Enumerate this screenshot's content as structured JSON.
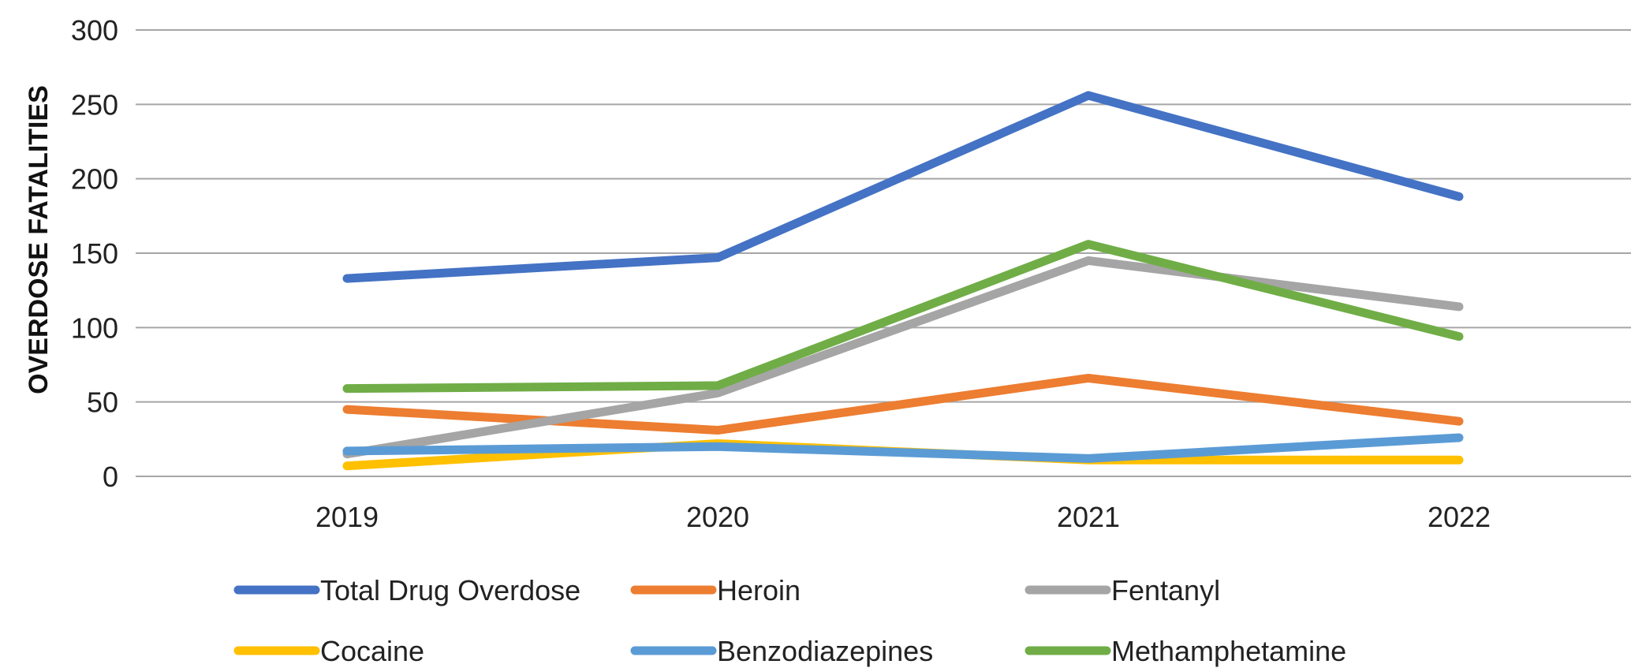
{
  "chart_data": {
    "type": "line",
    "title": "",
    "xlabel": "",
    "ylabel": "OVERDOSE FATALITIES",
    "categories": [
      "2019",
      "2020",
      "2021",
      "2022"
    ],
    "ylim": [
      0,
      300
    ],
    "yticks": [
      0,
      50,
      100,
      150,
      200,
      250,
      300
    ],
    "grid": true,
    "legend_position": "bottom",
    "series": [
      {
        "name": "Total Drug Overdose",
        "color": "#4472C4",
        "values": [
          133,
          147,
          256,
          188
        ]
      },
      {
        "name": "Heroin",
        "color": "#ED7D31",
        "values": [
          45,
          31,
          66,
          37
        ]
      },
      {
        "name": "Fentanyl",
        "color": "#A5A5A5",
        "values": [
          15,
          56,
          145,
          114
        ]
      },
      {
        "name": "Cocaine",
        "color": "#FFC000",
        "values": [
          7,
          22,
          11,
          11
        ]
      },
      {
        "name": "Benzodiazepines",
        "color": "#5B9BD5",
        "values": [
          17,
          20,
          12,
          26
        ]
      },
      {
        "name": "Methamphetamine",
        "color": "#70AD47",
        "values": [
          59,
          61,
          156,
          94
        ]
      }
    ]
  }
}
